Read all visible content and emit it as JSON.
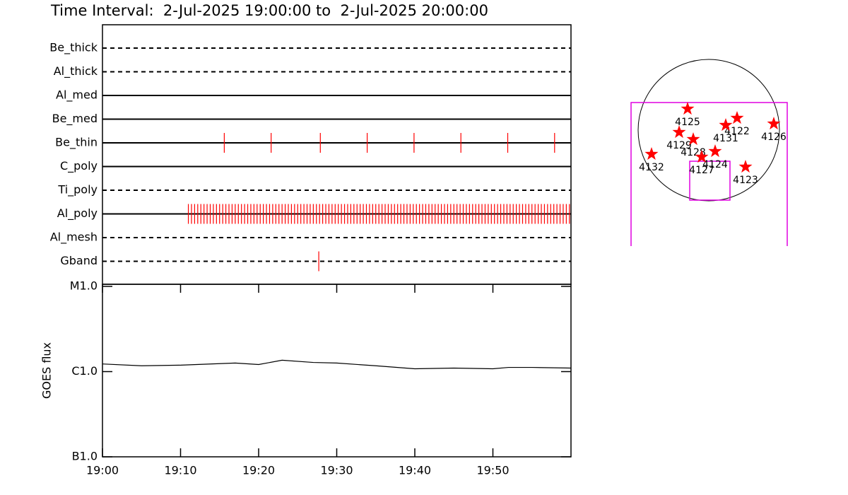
{
  "chart_data": [
    {
      "type": "event",
      "title": "Time Interval:  2-Jul-2025 19:00:00 to  2-Jul-2025 20:00:00",
      "xlim": [
        0,
        60
      ],
      "color": "#ff0000",
      "rows": [
        {
          "name": "Be_thick",
          "style": "dashed",
          "events": []
        },
        {
          "name": "Al_thick",
          "style": "dashed",
          "events": []
        },
        {
          "name": "Al_med",
          "style": "solid",
          "events": []
        },
        {
          "name": "Be_med",
          "style": "solid",
          "events": []
        },
        {
          "name": "Be_thin",
          "style": "solid",
          "events": [
            15.6,
            21.6,
            27.9,
            33.9,
            39.9,
            45.9,
            51.9,
            57.9
          ]
        },
        {
          "name": "C_poly",
          "style": "solid",
          "events": []
        },
        {
          "name": "Ti_poly",
          "style": "dashed",
          "events": []
        },
        {
          "name": "Al_poly",
          "style": "solid",
          "events": [
            11,
            11.4,
            11.8,
            12.2,
            12.6,
            13,
            13.4,
            13.8,
            14.2,
            14.6,
            15,
            15.4,
            15.8,
            16.2,
            16.6,
            17,
            17.4,
            17.8,
            18.2,
            18.6,
            19,
            19.4,
            19.8,
            20.2,
            20.6,
            21,
            21.4,
            21.8,
            22.2,
            22.6,
            23,
            23.4,
            23.8,
            24.2,
            24.6,
            25,
            25.4,
            25.8,
            26.2,
            26.6,
            27,
            27.4,
            27.8,
            28.2,
            28.6,
            29,
            29.4,
            29.8,
            30.2,
            30.6,
            31,
            31.4,
            31.8,
            32.2,
            32.6,
            33,
            33.4,
            33.8,
            34.2,
            34.6,
            35,
            35.4,
            35.8,
            36.2,
            36.6,
            37,
            37.4,
            37.8,
            38.2,
            38.6,
            39,
            39.4,
            39.8,
            40.2,
            40.6,
            41,
            41.4,
            41.8,
            42.2,
            42.6,
            43,
            43.4,
            43.8,
            44.2,
            44.6,
            45,
            45.4,
            45.8,
            46.2,
            46.6,
            47,
            47.4,
            47.8,
            48.2,
            48.6,
            49,
            49.4,
            49.8,
            50.2,
            50.6,
            51,
            51.4,
            51.8,
            52.2,
            52.6,
            53,
            53.4,
            53.8,
            54.2,
            54.6,
            55,
            55.4,
            55.8,
            56.2,
            56.6,
            57,
            57.4,
            57.8,
            58.2,
            58.6,
            59,
            59.4,
            59.8
          ]
        },
        {
          "name": "Al_mesh",
          "style": "dashed",
          "events": []
        },
        {
          "name": "Gband",
          "style": "dashed",
          "events": [
            27.7
          ]
        }
      ]
    },
    {
      "type": "line",
      "ylabel": "GOES flux",
      "log": true,
      "color": "#000000",
      "x": [
        0,
        5,
        10,
        17,
        20,
        23,
        27,
        30,
        35,
        40,
        45,
        50,
        52,
        55,
        60
      ],
      "values": [
        1.23e-06,
        1.17e-06,
        1.19e-06,
        1.26e-06,
        1.21e-06,
        1.36e-06,
        1.28e-06,
        1.26e-06,
        1.17e-06,
        1.08e-06,
        1.1e-06,
        1.08e-06,
        1.12e-06,
        1.12e-06,
        1.1e-06
      ],
      "xlim": [
        0,
        60
      ],
      "xticks": [
        {
          "value": 0,
          "label": "19:00"
        },
        {
          "value": 10,
          "label": "19:10"
        },
        {
          "value": 20,
          "label": "19:20"
        },
        {
          "value": 30,
          "label": "19:30"
        },
        {
          "value": 40,
          "label": "19:40"
        },
        {
          "value": 50,
          "label": "19:50"
        }
      ],
      "ylim": [
        1e-07,
        1e-05
      ],
      "yticks": [
        {
          "value": 1e-07,
          "label": "B1.0"
        },
        {
          "value": 1e-06,
          "label": "C1.0"
        },
        {
          "value": 1e-05,
          "label": "M1.0"
        }
      ]
    },
    {
      "type": "scatter",
      "color": "#ff0000",
      "labels": [
        "4125",
        "4122",
        "4131",
        "4126",
        "4129",
        "4128",
        "4124",
        "4127",
        "4132",
        "4123"
      ],
      "x": [
        -288,
        384,
        230,
        883,
        -403,
        -211,
        86,
        -96,
        -778,
        499
      ],
      "y": [
        288,
        163,
        67,
        86,
        -29,
        -125,
        -288,
        -365,
        -326,
        -499
      ]
    }
  ]
}
